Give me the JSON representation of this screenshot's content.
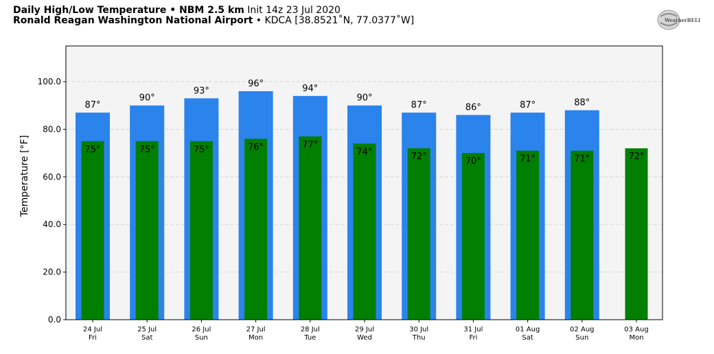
{
  "header": {
    "title_bold": "Daily High/Low Temperature • NBM 2.5 km",
    "title_init": "Init 14z 23 Jul 2020",
    "station_bold": "Ronald Reagan Washington National Airport",
    "station_info": "• KDCA [38.8521˚N, 77.0377˚W]"
  },
  "logo": {
    "text": "WeatherBELL",
    "icon": "weatherbell-logo-icon"
  },
  "colors": {
    "high": "#2b83ec",
    "low": "#007f00",
    "plot_bg": "#f4f4f4",
    "grid": "#d0d0d0"
  },
  "chart_data": {
    "type": "bar",
    "categories": [
      "24 Jul",
      "25 Jul",
      "26 Jul",
      "27 Jul",
      "28 Jul",
      "29 Jul",
      "30 Jul",
      "31 Jul",
      "01 Aug",
      "02 Aug",
      "03 Aug"
    ],
    "weekdays": [
      "Fri",
      "Sat",
      "Sun",
      "Mon",
      "Tue",
      "Wed",
      "Thu",
      "Fri",
      "Sat",
      "Sun",
      "Mon"
    ],
    "series": [
      {
        "values": [
          87,
          90,
          93,
          96,
          94,
          90,
          87,
          86,
          87,
          88,
          null
        ],
        "labels": [
          "87°",
          "90°",
          "93°",
          "96°",
          "94°",
          "90°",
          "87°",
          "86°",
          "87°",
          "88°",
          ""
        ]
      },
      {
        "values": [
          75,
          75,
          75,
          76,
          77,
          74,
          72,
          70,
          71,
          71,
          72
        ],
        "labels": [
          "75°",
          "75°",
          "75°",
          "76°",
          "77°",
          "74°",
          "72°",
          "70°",
          "71°",
          "71°",
          "72°"
        ]
      }
    ],
    "xlabel": "",
    "ylabel": "Temperature [°F]",
    "ylim": [
      0,
      115
    ],
    "yticks": [
      0,
      20,
      40,
      60,
      80,
      100
    ],
    "ytick_labels": [
      "0.0",
      "20.0",
      "40.0",
      "60.0",
      "80.0",
      "100.0"
    ],
    "grid": true
  }
}
